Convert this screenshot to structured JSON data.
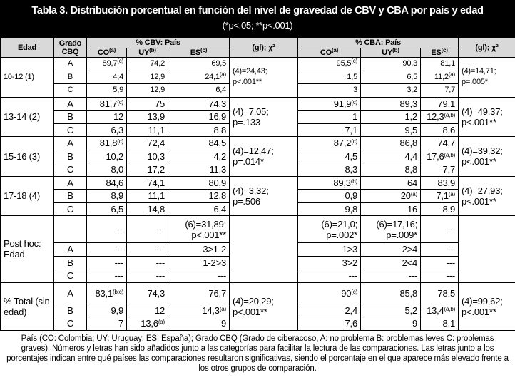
{
  "header": {
    "title": "Tabla 3. Distribución porcentual en función del nivel de gravedad de CBV y CBA por país y edad",
    "subtitle": "(*p<.05; **p<.001)"
  },
  "table": {
    "columns": {
      "edad": "Edad",
      "grado": "Grado CBQ",
      "cbv": "% CBV: País",
      "cba": "% CBA: País",
      "test": "(gl); χ²",
      "countries": [
        {
          "text": "CO",
          "sup": "(a)"
        },
        {
          "text": "UY",
          "sup": "(b)"
        },
        {
          "text": "ES",
          "sup": "(c)"
        }
      ]
    },
    "groups": [
      {
        "edad": "10-12 (1)",
        "cbv_test": "(4)=24,43; p<.001**",
        "cba_test": "(4)=14,71; p=.005*",
        "rows": [
          {
            "grado": "A",
            "cbv": [
              {
                "text": "89,7",
                "sup": "(c)"
              },
              "74,2",
              "69,5"
            ],
            "cba": [
              {
                "text": "95,5",
                "sup": "(c)"
              },
              "90,3",
              "81,1"
            ]
          },
          {
            "grado": "B",
            "cbv": [
              "4,4",
              "12,9",
              {
                "text": "24,1",
                "sup": "(a)"
              }
            ],
            "cba": [
              "1,5",
              "6,5",
              {
                "text": "11,2",
                "sup": "(a)"
              }
            ]
          },
          {
            "grado": "C",
            "cbv": [
              "5,9",
              "12,9",
              "6,4"
            ],
            "cba": [
              "3",
              "3,2",
              "7,7"
            ]
          }
        ]
      },
      {
        "edad": "13-14 (2)",
        "cbv_test": "(4)=7,05; p=.133",
        "cba_test": "(4)=49,37; p<.001**",
        "rows": [
          {
            "grado": "A",
            "cbv": [
              {
                "text": "81,7",
                "sup": "(c)"
              },
              "75",
              "74,3"
            ],
            "cba": [
              {
                "text": "91,9",
                "sup": "(c)"
              },
              "89,3",
              "79,1"
            ]
          },
          {
            "grado": "B",
            "cbv": [
              "12",
              "13,9",
              "16,9"
            ],
            "cba": [
              "1",
              "1,2",
              {
                "text": "12,3",
                "sup": "(a,b)"
              }
            ]
          },
          {
            "grado": "C",
            "cbv": [
              "6,3",
              "11,1",
              "8,8"
            ],
            "cba": [
              "7,1",
              "9,5",
              "8,6"
            ]
          }
        ]
      },
      {
        "edad": "15-16 (3)",
        "cbv_test": "(4)=12,47; p=.014*",
        "cba_test": "(4)=39,32; p<.001**",
        "rows": [
          {
            "grado": "A",
            "cbv": [
              {
                "text": "81,8",
                "sup": "(c)"
              },
              "72,4",
              "84,5"
            ],
            "cba": [
              {
                "text": "87,2",
                "sup": "(c)"
              },
              "86,8",
              "74,7"
            ]
          },
          {
            "grado": "B",
            "cbv": [
              "10,2",
              "10,3",
              "4,2"
            ],
            "cba": [
              "4,5",
              "4,4",
              {
                "text": "17,6",
                "sup": "(a,b)"
              }
            ]
          },
          {
            "grado": "C",
            "cbv": [
              "8,0",
              "17,2",
              "11,3"
            ],
            "cba": [
              "8,3",
              "8,8",
              "7,7"
            ]
          }
        ]
      },
      {
        "edad": "17-18 (4)",
        "cbv_test": "(4)=3,32; p=.506",
        "cba_test": "(4)=27,93; p<.001**",
        "rows": [
          {
            "grado": "A",
            "cbv": [
              "84,6",
              "74,1",
              "80,9"
            ],
            "cba": [
              {
                "text": "89,3",
                "sup": "(b)"
              },
              "64",
              "83,9"
            ]
          },
          {
            "grado": "B",
            "cbv": [
              "8,9",
              "11,1",
              "12,8"
            ],
            "cba": [
              "0,9",
              {
                "text": "20",
                "sup": "(a)"
              },
              {
                "text": "7,1",
                "sup": "(a)"
              }
            ]
          },
          {
            "grado": "C",
            "cbv": [
              "6,5",
              "14,8",
              "6,4"
            ],
            "cba": [
              "9,8",
              "16",
              "8,9"
            ]
          }
        ]
      },
      {
        "edad": "Post hoc: Edad",
        "cbv_test": null,
        "cba_test": null,
        "rows": [
          {
            "grado": null,
            "cbv": [
              "---",
              "---",
              "(6)=31,89; p<.001**"
            ],
            "cba": [
              "(6)=21,0; p=.002*",
              "(6)=17,16; p=.009*",
              "---"
            ]
          },
          {
            "grado": "A",
            "cbv": [
              "---",
              "---",
              "3>1-2"
            ],
            "cba": [
              "1>3",
              "2>4",
              "---"
            ]
          },
          {
            "grado": "B",
            "cbv": [
              "---",
              "---",
              "1-2>3"
            ],
            "cba": [
              "3>2",
              "2<4",
              "---"
            ]
          },
          {
            "grado": "C",
            "cbv": [
              "---",
              "---",
              "---"
            ],
            "cba": [
              "---",
              "---",
              "---"
            ]
          }
        ]
      },
      {
        "edad": "% Total (sin edad)",
        "cbv_test": "(4)=20,29; p<.001**",
        "cba_test": "(4)=99,62; p<.001**",
        "rows": [
          {
            "grado": "A",
            "cbv": [
              {
                "text": "83,1",
                "sup": "(b;c)"
              },
              "74,3",
              "76,7"
            ],
            "cba": [
              {
                "text": "90",
                "sup": "(c)"
              },
              "85,8",
              "78,5"
            ]
          },
          {
            "grado": "B",
            "cbv": [
              "9,9",
              "12",
              {
                "text": "14,3",
                "sup": "(a)"
              }
            ],
            "cba": [
              "2,4",
              "5,2",
              {
                "text": "13,4",
                "sup": "(a,b)"
              }
            ]
          },
          {
            "grado": "C",
            "cbv": [
              "7",
              {
                "text": "13,6",
                "sup": "(a)"
              },
              "9"
            ],
            "cba": [
              "7,6",
              "9",
              "8,1"
            ]
          }
        ]
      }
    ]
  },
  "footer": {
    "note": "País (CO: Colombia; UY: Uruguay; ES: España); Grado CBQ (Grado de ciberacoso, A: no problema B: problemas leves C: problemas graves). Números y letras han sido añadidos junto a las categorías para facilitar la lectura de las comparaciones. Las letras junto a los porcentajes indican entre qué países las comparaciones resultaron significativas, siendo el porcentaje en el que aparece más elevado frente a los otros grupos de comparación."
  }
}
